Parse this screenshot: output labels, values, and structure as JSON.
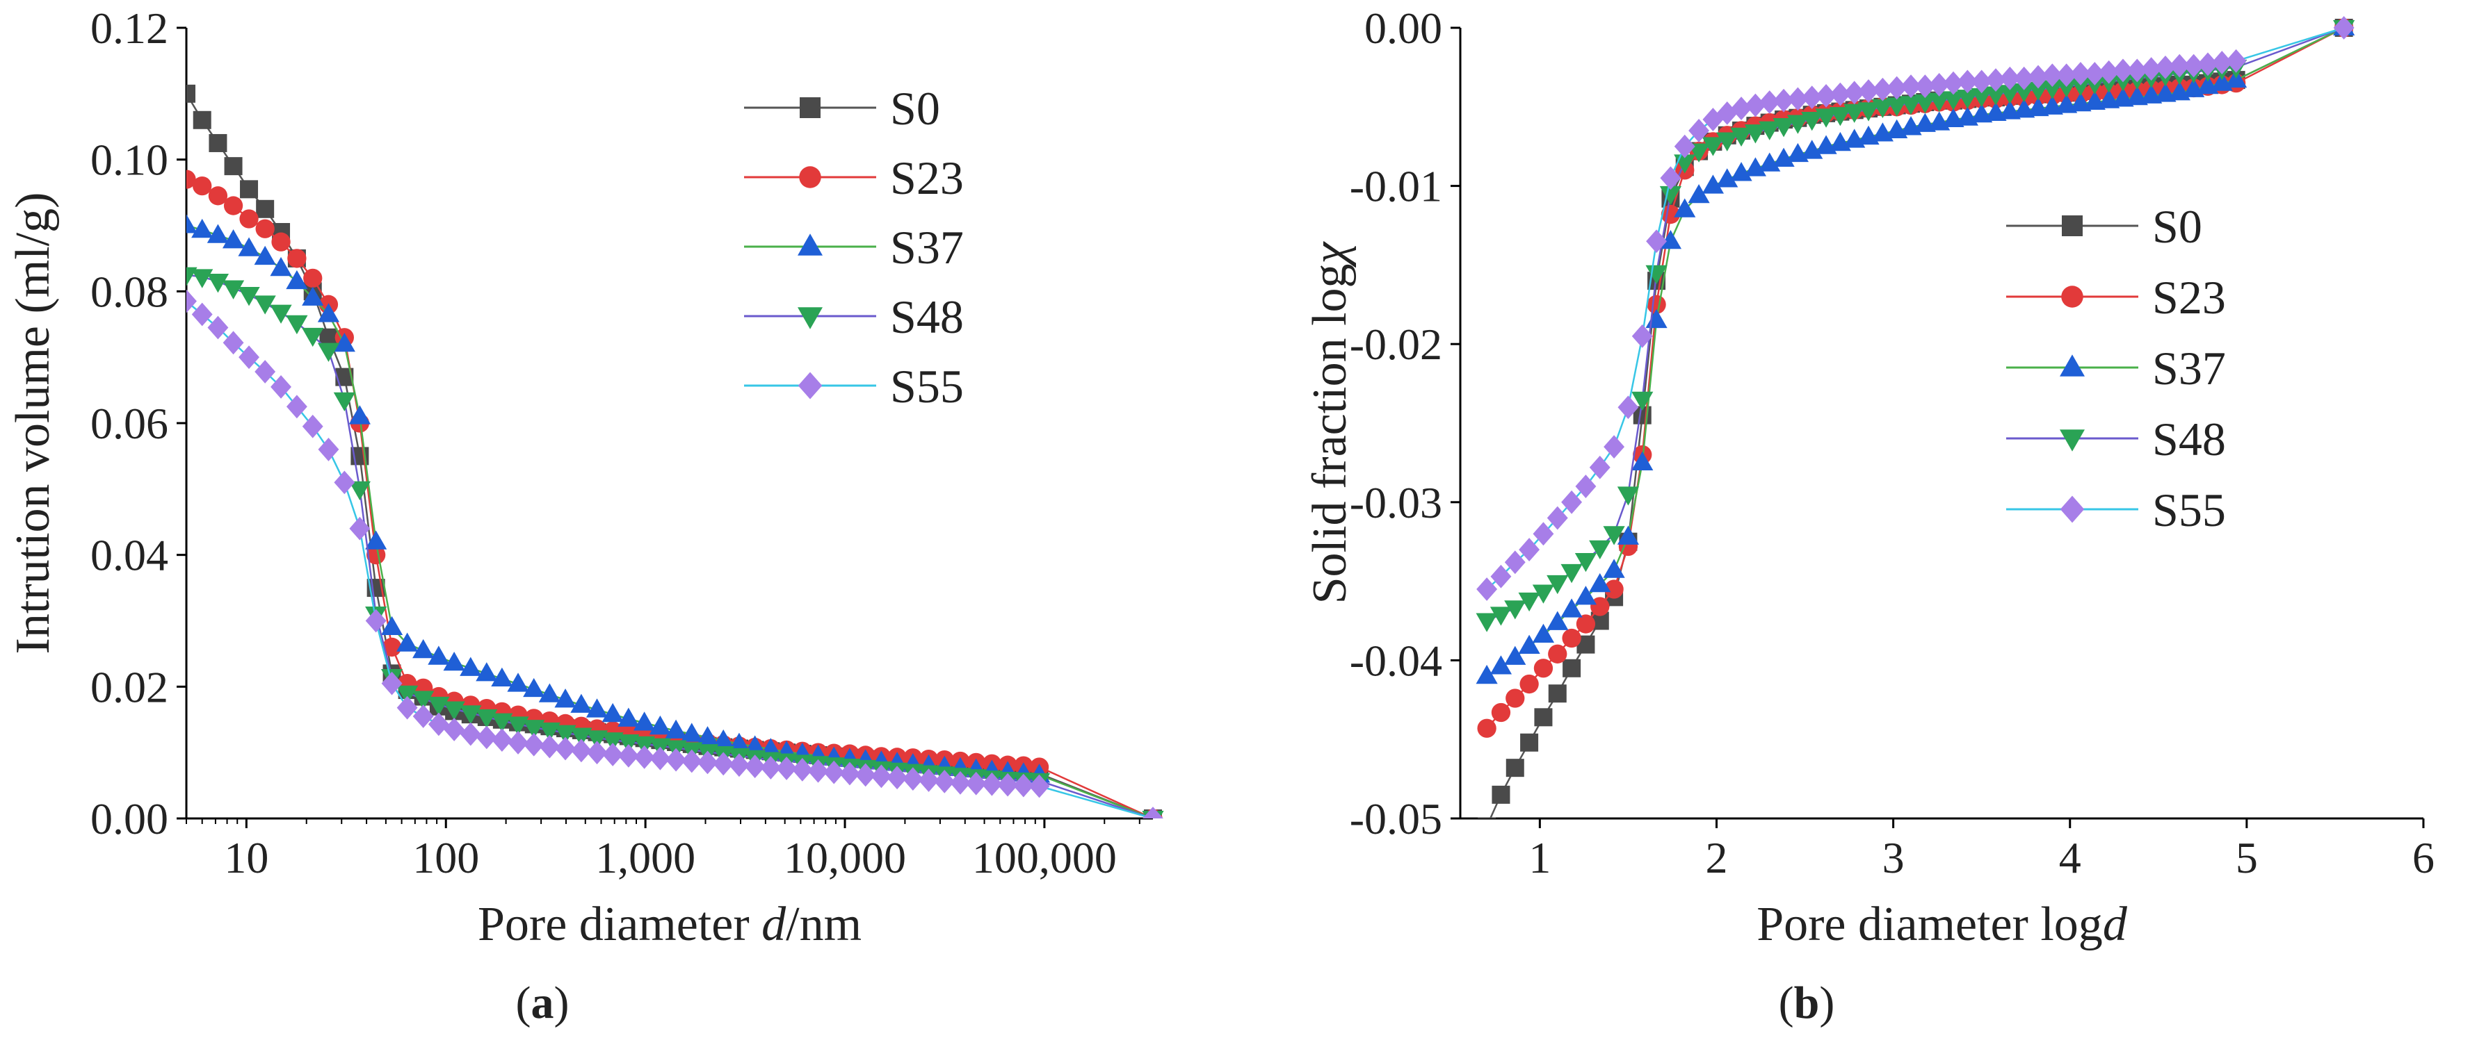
{
  "colors": {
    "S0": "#4a4a4a",
    "S23": "#e23a3a",
    "S37": "#1f5fd6",
    "S48": "#2aa355",
    "S55": "#a77ee8"
  },
  "line_colors": {
    "S0": "#555555",
    "S23": "#e23a3a",
    "S37": "#4ab04a",
    "S48": "#6a5acd",
    "S55": "#37c6e6"
  },
  "markers": {
    "S0": "square",
    "S23": "circle",
    "S37": "triangle-up",
    "S48": "triangle-down",
    "S55": "diamond"
  },
  "panels": {
    "a": {
      "label_open": "(",
      "label_letter": "a",
      "label_close": ")"
    },
    "b": {
      "label_open": "(",
      "label_letter": "b",
      "label_close": ")"
    }
  },
  "chart_data": [
    {
      "type": "scatter",
      "panel": "a",
      "xscale": "log",
      "xlim": [
        5,
        350000
      ],
      "ylim": [
        0,
        0.12
      ],
      "xticks": [
        10,
        100,
        1000,
        10000,
        100000
      ],
      "xtick_labels": [
        "10",
        "100",
        "1,000",
        "10,000",
        "100,000"
      ],
      "yticks": [
        0,
        0.02,
        0.04,
        0.06,
        0.08,
        0.1,
        0.12
      ],
      "ytick_labels": [
        "0.00",
        "0.02",
        "0.04",
        "0.06",
        "0.08",
        "0.10",
        "0.12"
      ],
      "xlabel_pre": "Pore diameter ",
      "xlabel_italic": "d",
      "xlabel_post": "/nm",
      "ylabel": "Intrution volume (ml/g)",
      "legend_position": "top-right",
      "x": [
        5,
        6,
        7.2,
        8.6,
        10.3,
        12.4,
        14.9,
        17.9,
        21.5,
        25.8,
        31,
        37,
        44.6,
        53.6,
        64,
        77,
        92,
        110,
        133,
        160,
        191,
        230,
        276,
        331,
        397,
        477,
        572,
        686,
        823,
        988,
        1186,
        1423,
        1707,
        2049,
        2459,
        2950,
        3540,
        4248,
        5098,
        6118,
        7341,
        8810,
        10572,
        12686,
        15223,
        18268,
        21922,
        26306,
        31567,
        37881,
        45457,
        54548,
        65458,
        78549,
        94259,
        350000
      ],
      "series": [
        {
          "name": "S0",
          "values": [
            0.11,
            0.106,
            0.1025,
            0.099,
            0.0955,
            0.0925,
            0.089,
            0.085,
            0.08,
            0.073,
            0.067,
            0.055,
            0.035,
            0.022,
            0.0195,
            0.0185,
            0.017,
            0.0163,
            0.0158,
            0.0154,
            0.015,
            0.0146,
            0.0143,
            0.014,
            0.0137,
            0.0134,
            0.0131,
            0.0128,
            0.0125,
            0.0122,
            0.0119,
            0.0116,
            0.0113,
            0.011,
            0.0108,
            0.0106,
            0.0104,
            0.0102,
            0.01,
            0.0098,
            0.0096,
            0.0094,
            0.0092,
            0.009,
            0.0088,
            0.0086,
            0.0084,
            0.0082,
            0.008,
            0.0078,
            0.0076,
            0.0074,
            0.0072,
            0.007,
            0.0068,
            0.0
          ]
        },
        {
          "name": "S23",
          "values": [
            0.097,
            0.096,
            0.0945,
            0.093,
            0.091,
            0.0895,
            0.0875,
            0.085,
            0.082,
            0.078,
            0.073,
            0.06,
            0.04,
            0.026,
            0.0205,
            0.0198,
            0.0185,
            0.0178,
            0.0172,
            0.0167,
            0.0162,
            0.0157,
            0.0152,
            0.0148,
            0.0144,
            0.014,
            0.0136,
            0.0133,
            0.013,
            0.0127,
            0.0124,
            0.0121,
            0.0118,
            0.0115,
            0.0112,
            0.011,
            0.0108,
            0.0106,
            0.0104,
            0.0102,
            0.01,
            0.0099,
            0.0098,
            0.0096,
            0.0094,
            0.0093,
            0.0092,
            0.009,
            0.0089,
            0.0087,
            0.0085,
            0.0083,
            0.0081,
            0.008,
            0.0078,
            0.0
          ]
        },
        {
          "name": "S37",
          "values": [
            0.09,
            0.0893,
            0.0885,
            0.0877,
            0.0865,
            0.0852,
            0.0835,
            0.0815,
            0.079,
            0.0765,
            0.072,
            0.061,
            0.042,
            0.029,
            0.0265,
            0.0255,
            0.0245,
            0.0236,
            0.0228,
            0.022,
            0.0212,
            0.0204,
            0.0196,
            0.0188,
            0.018,
            0.0172,
            0.0165,
            0.0158,
            0.0151,
            0.0145,
            0.0139,
            0.0133,
            0.0128,
            0.0123,
            0.0118,
            0.0113,
            0.0109,
            0.0105,
            0.0101,
            0.0098,
            0.0095,
            0.0092,
            0.009,
            0.0088,
            0.0086,
            0.0084,
            0.0082,
            0.008,
            0.0078,
            0.0076,
            0.0074,
            0.0072,
            0.007,
            0.0068,
            0.0066,
            0.0
          ]
        },
        {
          "name": "S48",
          "values": [
            0.0825,
            0.0822,
            0.0815,
            0.0805,
            0.0795,
            0.0782,
            0.0768,
            0.0752,
            0.0733,
            0.071,
            0.0635,
            0.05,
            0.031,
            0.0215,
            0.019,
            0.0182,
            0.0173,
            0.0166,
            0.016,
            0.0154,
            0.0148,
            0.0143,
            0.0138,
            0.0134,
            0.013,
            0.0126,
            0.0122,
            0.0119,
            0.0116,
            0.0113,
            0.011,
            0.0107,
            0.0104,
            0.0101,
            0.0098,
            0.0095,
            0.0092,
            0.0089,
            0.0087,
            0.0085,
            0.0083,
            0.0081,
            0.0079,
            0.0077,
            0.0075,
            0.0073,
            0.0071,
            0.0069,
            0.0067,
            0.0065,
            0.0063,
            0.0061,
            0.0059,
            0.0058,
            0.0057,
            0.0
          ]
        },
        {
          "name": "S55",
          "values": [
            0.0785,
            0.0765,
            0.0745,
            0.0722,
            0.07,
            0.0678,
            0.0655,
            0.0625,
            0.0595,
            0.056,
            0.051,
            0.044,
            0.03,
            0.0205,
            0.0168,
            0.0155,
            0.0143,
            0.0135,
            0.0128,
            0.0123,
            0.0119,
            0.0115,
            0.0112,
            0.0109,
            0.0106,
            0.0103,
            0.01,
            0.0097,
            0.0095,
            0.0093,
            0.0091,
            0.0089,
            0.0087,
            0.0085,
            0.0083,
            0.0081,
            0.0079,
            0.0077,
            0.0076,
            0.0074,
            0.0072,
            0.007,
            0.0068,
            0.0066,
            0.0064,
            0.0062,
            0.006,
            0.0058,
            0.0056,
            0.0054,
            0.0053,
            0.0052,
            0.0051,
            0.005,
            0.0049,
            0.0
          ]
        }
      ]
    },
    {
      "type": "scatter",
      "panel": "b",
      "xscale": "linear",
      "xlim": [
        0.55,
        6
      ],
      "ylim": [
        -0.05,
        0
      ],
      "xticks": [
        1,
        2,
        3,
        4,
        5,
        6
      ],
      "xtick_labels": [
        "1",
        "2",
        "3",
        "4",
        "5",
        "6"
      ],
      "yticks": [
        0,
        -0.01,
        -0.02,
        -0.03,
        -0.04,
        -0.05
      ],
      "ytick_labels": [
        "0.00",
        "-0.01",
        "-0.02",
        "-0.03",
        "-0.04",
        "-0.05"
      ],
      "xlabel_pre": "Pore diameter log",
      "xlabel_italic": "d",
      "xlabel_post": "",
      "ylabel_pre": "Solid fraction log",
      "ylabel_italic": "χ",
      "legend_position": "center-right",
      "x": [
        0.7,
        0.78,
        0.86,
        0.94,
        1.02,
        1.1,
        1.18,
        1.26,
        1.34,
        1.42,
        1.5,
        1.58,
        1.66,
        1.74,
        1.82,
        1.9,
        1.98,
        2.06,
        2.14,
        2.22,
        2.3,
        2.38,
        2.46,
        2.54,
        2.62,
        2.7,
        2.78,
        2.86,
        2.94,
        3.02,
        3.1,
        3.18,
        3.26,
        3.34,
        3.42,
        3.5,
        3.58,
        3.66,
        3.74,
        3.82,
        3.9,
        3.98,
        4.06,
        4.14,
        4.22,
        4.3,
        4.38,
        4.46,
        4.54,
        4.62,
        4.7,
        4.78,
        4.86,
        4.94,
        5.55
      ],
      "series": [
        {
          "name": "S0",
          "values": [
            -0.0505,
            -0.0485,
            -0.0468,
            -0.0452,
            -0.0436,
            -0.0421,
            -0.0405,
            -0.039,
            -0.0375,
            -0.036,
            -0.0325,
            -0.0245,
            -0.016,
            -0.0108,
            -0.0088,
            -0.0078,
            -0.0072,
            -0.0068,
            -0.0065,
            -0.0062,
            -0.006,
            -0.0058,
            -0.0057,
            -0.0055,
            -0.0054,
            -0.0053,
            -0.0052,
            -0.0051,
            -0.005,
            -0.0049,
            -0.0048,
            -0.0047,
            -0.0046,
            -0.0046,
            -0.0045,
            -0.0044,
            -0.0044,
            -0.0043,
            -0.0042,
            -0.0042,
            -0.0041,
            -0.0041,
            -0.004,
            -0.0039,
            -0.0039,
            -0.0038,
            -0.0038,
            -0.0037,
            -0.0037,
            -0.0036,
            -0.0036,
            -0.0035,
            -0.0034,
            -0.0033,
            0.0
          ]
        },
        {
          "name": "S23",
          "values": [
            -0.0443,
            -0.0433,
            -0.0424,
            -0.0415,
            -0.0405,
            -0.0396,
            -0.0386,
            -0.0377,
            -0.0366,
            -0.0355,
            -0.0328,
            -0.027,
            -0.0175,
            -0.0118,
            -0.009,
            -0.0078,
            -0.0072,
            -0.0068,
            -0.0065,
            -0.0062,
            -0.006,
            -0.0058,
            -0.0057,
            -0.0055,
            -0.0054,
            -0.0053,
            -0.0052,
            -0.0051,
            -0.005,
            -0.005,
            -0.0049,
            -0.0048,
            -0.0047,
            -0.0047,
            -0.0046,
            -0.0045,
            -0.0045,
            -0.0044,
            -0.0044,
            -0.0043,
            -0.0043,
            -0.0042,
            -0.0042,
            -0.0041,
            -0.0041,
            -0.004,
            -0.004,
            -0.0039,
            -0.0039,
            -0.0038,
            -0.0038,
            -0.0037,
            -0.0036,
            -0.0035,
            0.0
          ]
        },
        {
          "name": "S37",
          "values": [
            -0.041,
            -0.0404,
            -0.0398,
            -0.0391,
            -0.0384,
            -0.0376,
            -0.0368,
            -0.036,
            -0.0352,
            -0.0343,
            -0.0322,
            -0.0275,
            -0.0185,
            -0.0135,
            -0.0115,
            -0.0106,
            -0.01,
            -0.0096,
            -0.0092,
            -0.0089,
            -0.0086,
            -0.0083,
            -0.008,
            -0.0078,
            -0.0075,
            -0.0073,
            -0.0071,
            -0.0069,
            -0.0067,
            -0.0065,
            -0.0063,
            -0.0061,
            -0.006,
            -0.0058,
            -0.0057,
            -0.0055,
            -0.0054,
            -0.0053,
            -0.0052,
            -0.0051,
            -0.005,
            -0.0049,
            -0.0048,
            -0.0047,
            -0.0046,
            -0.0045,
            -0.0044,
            -0.0043,
            -0.0042,
            -0.0041,
            -0.0039,
            -0.0037,
            -0.0035,
            -0.0033,
            0.0
          ]
        },
        {
          "name": "S48",
          "values": [
            -0.0375,
            -0.0371,
            -0.0367,
            -0.0362,
            -0.0357,
            -0.0351,
            -0.0344,
            -0.0337,
            -0.0329,
            -0.032,
            -0.0295,
            -0.0235,
            -0.0155,
            -0.0105,
            -0.0085,
            -0.0078,
            -0.0074,
            -0.0071,
            -0.0068,
            -0.0066,
            -0.0064,
            -0.0062,
            -0.006,
            -0.0058,
            -0.0056,
            -0.0055,
            -0.0053,
            -0.0052,
            -0.005,
            -0.0049,
            -0.0048,
            -0.0047,
            -0.0046,
            -0.0045,
            -0.0044,
            -0.0043,
            -0.0042,
            -0.0041,
            -0.004,
            -0.0039,
            -0.0038,
            -0.0037,
            -0.0036,
            -0.0035,
            -0.0034,
            -0.0033,
            -0.0032,
            -0.0031,
            -0.003,
            -0.0029,
            -0.0028,
            -0.0027,
            -0.0026,
            -0.0025,
            0.0
          ]
        },
        {
          "name": "S55",
          "values": [
            -0.0355,
            -0.0347,
            -0.0338,
            -0.033,
            -0.032,
            -0.031,
            -0.03,
            -0.029,
            -0.0278,
            -0.0265,
            -0.024,
            -0.0195,
            -0.0135,
            -0.0095,
            -0.0075,
            -0.0065,
            -0.0058,
            -0.0054,
            -0.0051,
            -0.0049,
            -0.0047,
            -0.0046,
            -0.0045,
            -0.0044,
            -0.0043,
            -0.0042,
            -0.0041,
            -0.004,
            -0.0039,
            -0.0038,
            -0.0037,
            -0.0037,
            -0.0036,
            -0.0035,
            -0.0034,
            -0.0034,
            -0.0033,
            -0.0032,
            -0.0032,
            -0.0031,
            -0.003,
            -0.003,
            -0.0029,
            -0.0029,
            -0.0028,
            -0.0027,
            -0.0027,
            -0.0026,
            -0.0025,
            -0.0024,
            -0.0024,
            -0.0023,
            -0.0022,
            -0.0021,
            0.0
          ]
        }
      ]
    }
  ]
}
